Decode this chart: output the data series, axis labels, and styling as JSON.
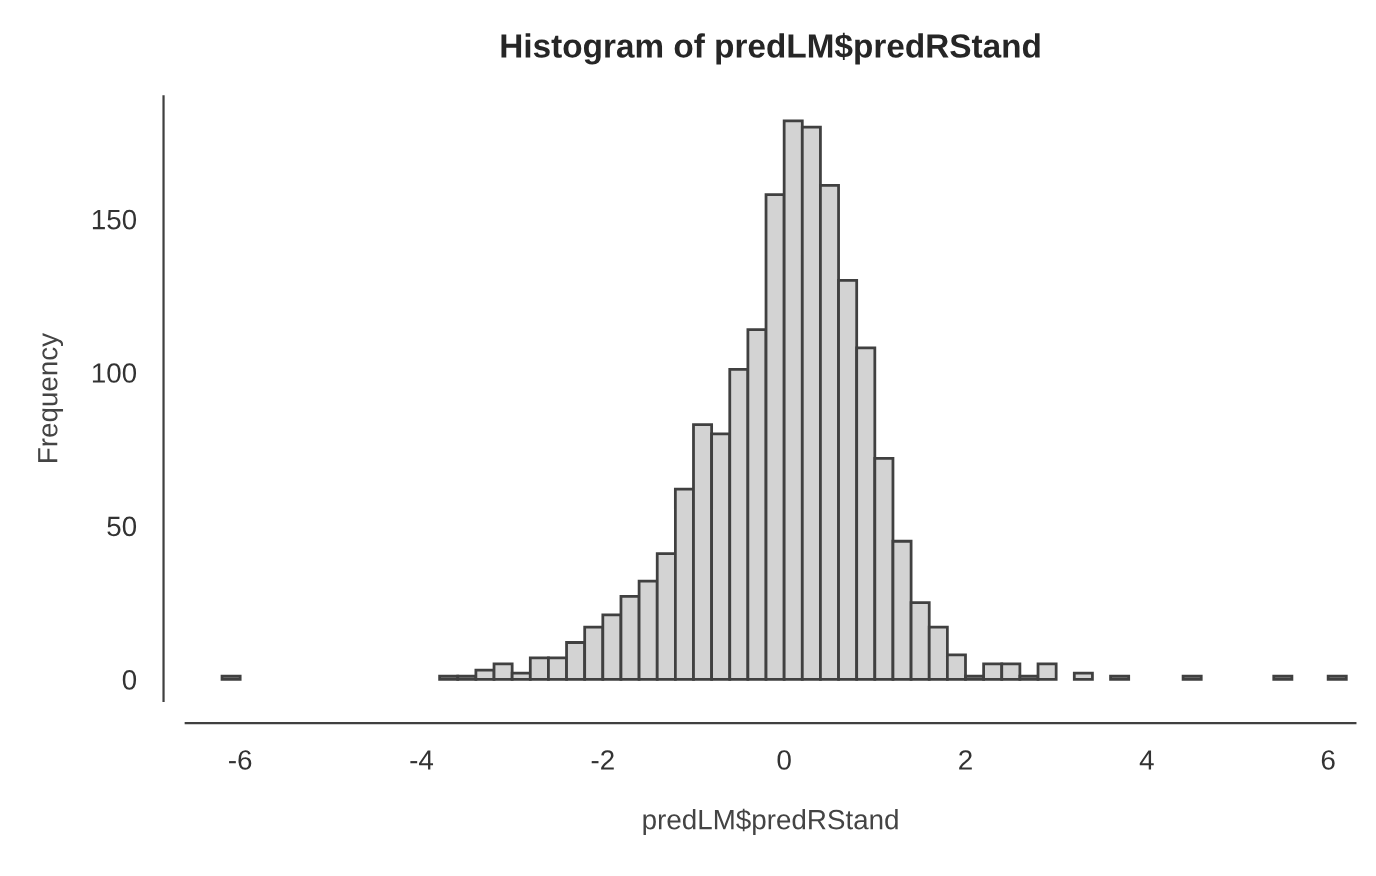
{
  "chart_data": {
    "type": "histogram",
    "title": "Histogram of predLM$predRStand",
    "xlabel": "predLM$predRStand",
    "ylabel": "Frequency",
    "bins": [
      -6.2,
      -6.0,
      -5.8,
      -5.6,
      -5.4,
      -5.2,
      -5.0,
      -4.8,
      -4.6,
      -4.4,
      -4.2,
      -4.0,
      -3.8,
      -3.6,
      -3.4,
      -3.2,
      -3.0,
      -2.8,
      -2.6,
      -2.4,
      -2.2,
      -2.0,
      -1.8,
      -1.6,
      -1.4,
      -1.2,
      -1.0,
      -0.8,
      -0.6,
      -0.4,
      -0.2,
      0.0,
      0.2,
      0.4,
      0.6,
      0.8,
      1.0,
      1.2,
      1.4,
      1.6,
      1.8,
      2.0,
      2.2,
      2.4,
      2.6,
      2.8,
      3.0,
      3.2,
      3.4,
      3.6,
      3.8,
      4.0,
      4.2,
      4.4,
      4.6,
      4.8,
      5.0,
      5.2,
      5.4,
      5.6,
      5.8,
      6.0,
      6.2
    ],
    "values": [
      1,
      0,
      0,
      0,
      0,
      0,
      0,
      0,
      0,
      0,
      0,
      0,
      1,
      1,
      3,
      5,
      2,
      7,
      7,
      12,
      17,
      21,
      27,
      32,
      41,
      62,
      83,
      80,
      101,
      114,
      158,
      182,
      180,
      161,
      130,
      108,
      72,
      45,
      25,
      17,
      8,
      1,
      5,
      5,
      1,
      5,
      0,
      2,
      0,
      1,
      0,
      0,
      0,
      1,
      0,
      0,
      0,
      0,
      1,
      0,
      0,
      1
    ],
    "color": "#d3d3d3",
    "xlim": [
      -6.6,
      6.3
    ],
    "ylim": [
      -7,
      190
    ],
    "xticks": [
      -6,
      -4,
      -2,
      0,
      2,
      4,
      6
    ],
    "yticks": [
      0,
      50,
      100,
      150
    ],
    "grid": false
  }
}
